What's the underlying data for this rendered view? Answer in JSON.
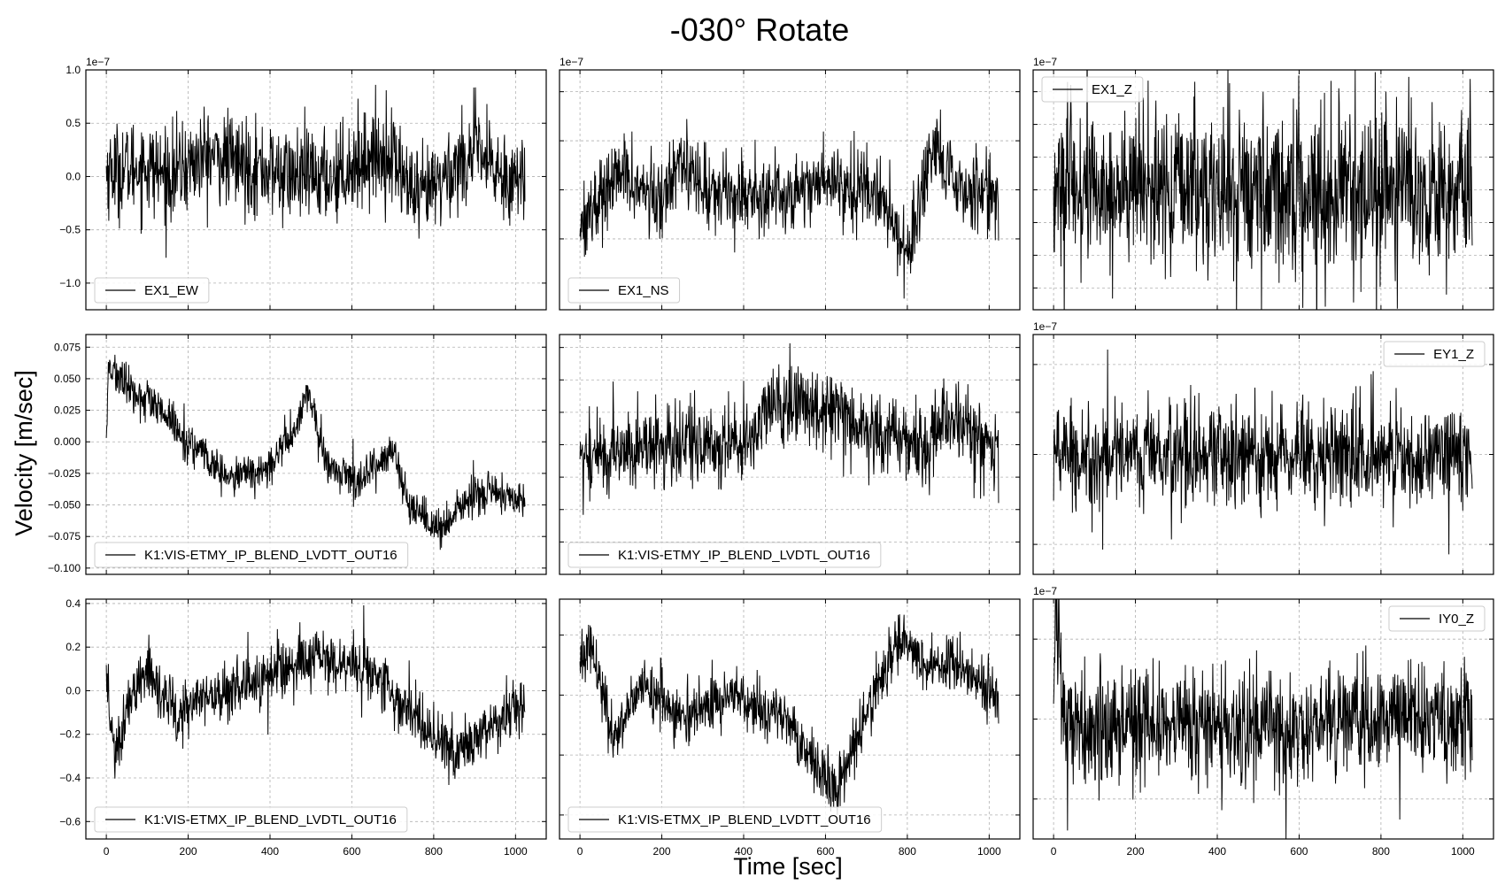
{
  "title": "-030° Rotate",
  "xlabel": "Time [sec]",
  "ylabel": "Velocity [m/sec]",
  "colors": {
    "trace": "#000000",
    "grid": "#b0b0b0",
    "frame": "#000000",
    "legend_border": "#cccccc"
  },
  "chart_data": [
    {
      "type": "line",
      "series_label": "EX1_EW",
      "xlim": [
        -50,
        1075
      ],
      "ylim": [
        -1.25,
        1.0
      ],
      "yticks": [
        -1.0,
        -0.5,
        0.0,
        0.5,
        1.0
      ],
      "ytick_labels": [
        "−1.0",
        "−0.5",
        "0.0",
        "0.5",
        "1.0"
      ],
      "offset_text": "1e−7",
      "legend_loc": "lower left",
      "trace": {
        "n": 1024,
        "x_start": 0,
        "x_end": 1023,
        "mean": -0.05,
        "noise": 0.22,
        "anchors": [
          [
            0,
            0.05
          ],
          [
            100,
            0.1
          ],
          [
            150,
            0.0
          ],
          [
            250,
            0.2
          ],
          [
            350,
            0.1
          ],
          [
            450,
            0.0
          ],
          [
            550,
            0.0
          ],
          [
            650,
            0.2
          ],
          [
            700,
            0.2
          ],
          [
            760,
            -0.25
          ],
          [
            800,
            -0.1
          ],
          [
            900,
            0.25
          ],
          [
            950,
            0.05
          ],
          [
            1023,
            -0.05
          ]
        ]
      }
    },
    {
      "type": "line",
      "series_label": "EX1_NS",
      "xlim": [
        -50,
        1075
      ],
      "ylim": [
        -1.1,
        1.1
      ],
      "yticks": [
        -0.45,
        0.0,
        0.45,
        0.9
      ],
      "ytick_labels": [
        "",
        "",
        "",
        ""
      ],
      "offset_text": "1e−7",
      "legend_loc": "lower left",
      "trace": {
        "n": 1024,
        "x_start": 0,
        "x_end": 1023,
        "mean": 0.0,
        "noise": 0.18,
        "anchors": [
          [
            0,
            -0.3
          ],
          [
            100,
            0.15
          ],
          [
            200,
            -0.15
          ],
          [
            240,
            0.35
          ],
          [
            300,
            0.0
          ],
          [
            500,
            -0.05
          ],
          [
            600,
            0.1
          ],
          [
            720,
            0.0
          ],
          [
            800,
            -0.55
          ],
          [
            870,
            0.35
          ],
          [
            920,
            0.0
          ],
          [
            1023,
            0.0
          ]
        ]
      }
    },
    {
      "type": "line",
      "series_label": "EX1_Z",
      "xlim": [
        -50,
        1075
      ],
      "ylim": [
        -1.1,
        1.1
      ],
      "yticks": [
        -0.9,
        -0.6,
        -0.3,
        0.0,
        0.3,
        0.6,
        0.9
      ],
      "ytick_labels": [
        "",
        "",
        "",
        "",
        "",
        "",
        ""
      ],
      "offset_text": "1e−7",
      "legend_loc": "upper left",
      "trace": {
        "n": 1024,
        "x_start": 0,
        "x_end": 1023,
        "mean": 0.0,
        "noise": 0.38,
        "anchors": [
          [
            0,
            0.0
          ],
          [
            1023,
            0.0
          ]
        ]
      }
    },
    {
      "type": "line",
      "series_label": "K1:VIS-ETMY_IP_BLEND_LVDTT_OUT16",
      "xlim": [
        -50,
        1075
      ],
      "ylim": [
        -0.105,
        0.085
      ],
      "yticks": [
        -0.1,
        -0.075,
        -0.05,
        -0.025,
        0.0,
        0.025,
        0.05,
        0.075
      ],
      "ytick_labels": [
        "−0.100",
        "−0.075",
        "−0.050",
        "−0.025",
        "0.000",
        "0.025",
        "0.050",
        "0.075"
      ],
      "offset_text": "",
      "legend_loc": "lower left",
      "trace": {
        "n": 1024,
        "x_start": 0,
        "x_end": 1023,
        "mean": 0.0,
        "noise": 0.008,
        "anchors": [
          [
            0,
            0.0
          ],
          [
            5,
            0.06
          ],
          [
            60,
            0.04
          ],
          [
            130,
            0.025
          ],
          [
            200,
            0.0
          ],
          [
            300,
            -0.03
          ],
          [
            400,
            -0.02
          ],
          [
            460,
            0.01
          ],
          [
            490,
            0.04
          ],
          [
            540,
            -0.02
          ],
          [
            620,
            -0.03
          ],
          [
            700,
            -0.005
          ],
          [
            740,
            -0.055
          ],
          [
            820,
            -0.07
          ],
          [
            900,
            -0.04
          ],
          [
            1023,
            -0.045
          ]
        ]
      }
    },
    {
      "type": "line",
      "series_label": "K1:VIS-ETMY_IP_BLEND_LVDTL_OUT16",
      "xlim": [
        -50,
        1075
      ],
      "ylim": [
        -0.1,
        0.085
      ],
      "yticks": [
        -0.075,
        -0.05,
        -0.025,
        0.0,
        0.025,
        0.05,
        0.075
      ],
      "ytick_labels": [
        "",
        "",
        "",
        "",
        "",
        "",
        ""
      ],
      "offset_text": "",
      "legend_loc": "lower left",
      "trace": {
        "n": 1024,
        "x_start": 0,
        "x_end": 1023,
        "mean": 0.0,
        "noise": 0.016,
        "anchors": [
          [
            0,
            -0.01
          ],
          [
            200,
            0.0
          ],
          [
            400,
            0.0
          ],
          [
            470,
            0.03
          ],
          [
            640,
            0.03
          ],
          [
            700,
            0.01
          ],
          [
            850,
            0.0
          ],
          [
            900,
            0.025
          ],
          [
            1023,
            -0.01
          ]
        ]
      }
    },
    {
      "type": "line",
      "series_label": "EY1_Z",
      "xlim": [
        -50,
        1075
      ],
      "ylim": [
        -2.0,
        2.0
      ],
      "yticks": [
        -1.5,
        0.0,
        1.5
      ],
      "ytick_labels": [
        "",
        "",
        ""
      ],
      "offset_text": "1e−7",
      "legend_loc": "upper right",
      "trace": {
        "n": 1024,
        "x_start": 0,
        "x_end": 1023,
        "mean": 0.0,
        "noise": 0.45,
        "anchors": [
          [
            0,
            0.0
          ],
          [
            1023,
            0.0
          ]
        ]
      }
    },
    {
      "type": "line",
      "series_label": "K1:VIS-ETMX_IP_BLEND_LVDTL_OUT16",
      "xlim": [
        -50,
        1075
      ],
      "ylim": [
        -0.68,
        0.42
      ],
      "yticks": [
        -0.6,
        -0.4,
        -0.2,
        0.0,
        0.2,
        0.4
      ],
      "ytick_labels": [
        "−0.6",
        "−0.4",
        "−0.2",
        "0.0",
        "0.2",
        "0.4"
      ],
      "offset_text": "",
      "legend_loc": "lower left",
      "trace": {
        "n": 1024,
        "x_start": 0,
        "x_end": 1023,
        "mean": 0.0,
        "noise": 0.07,
        "anchors": [
          [
            0,
            0.0
          ],
          [
            20,
            -0.3
          ],
          [
            60,
            -0.05
          ],
          [
            100,
            0.1
          ],
          [
            180,
            -0.1
          ],
          [
            300,
            0.0
          ],
          [
            500,
            0.15
          ],
          [
            650,
            0.1
          ],
          [
            750,
            -0.1
          ],
          [
            850,
            -0.3
          ],
          [
            950,
            -0.15
          ],
          [
            1023,
            -0.05
          ]
        ]
      }
    },
    {
      "type": "line",
      "series_label": "K1:VIS-ETMX_IP_BLEND_LVDTT_OUT16",
      "xlim": [
        -50,
        1075
      ],
      "ylim": [
        -0.6,
        0.4
      ],
      "yticks": [
        -0.5,
        -0.25,
        0.0,
        0.25
      ],
      "ytick_labels": [
        "",
        "",
        "",
        ""
      ],
      "offset_text": "",
      "legend_loc": "lower left",
      "trace": {
        "n": 1024,
        "x_start": 0,
        "x_end": 1023,
        "mean": 0.0,
        "noise": 0.06,
        "anchors": [
          [
            0,
            0.1
          ],
          [
            20,
            0.25
          ],
          [
            80,
            -0.2
          ],
          [
            150,
            0.05
          ],
          [
            250,
            -0.1
          ],
          [
            380,
            0.0
          ],
          [
            500,
            -0.1
          ],
          [
            620,
            -0.4
          ],
          [
            700,
            -0.1
          ],
          [
            780,
            0.25
          ],
          [
            850,
            0.1
          ],
          [
            900,
            0.15
          ],
          [
            1023,
            0.0
          ]
        ]
      }
    },
    {
      "type": "line",
      "series_label": "IY0_Z",
      "xlim": [
        -50,
        1075
      ],
      "ylim": [
        -3.0,
        3.0
      ],
      "yticks": [
        -2.0,
        0.0,
        2.0
      ],
      "ytick_labels": [
        "",
        "",
        ""
      ],
      "offset_text": "1e−7",
      "legend_loc": "upper right",
      "trace": {
        "n": 1024,
        "x_start": 0,
        "x_end": 1023,
        "mean": 0.0,
        "noise": 0.7,
        "anchors": [
          [
            0,
            1.5
          ],
          [
            10,
            2.2
          ],
          [
            30,
            -0.5
          ],
          [
            200,
            0.0
          ],
          [
            500,
            -0.2
          ],
          [
            800,
            0.0
          ],
          [
            1023,
            -0.2
          ]
        ]
      }
    }
  ],
  "shared_xticks": [
    0,
    200,
    400,
    600,
    800,
    1000
  ],
  "shared_xtick_labels": [
    "0",
    "200",
    "400",
    "600",
    "800",
    "1000"
  ]
}
